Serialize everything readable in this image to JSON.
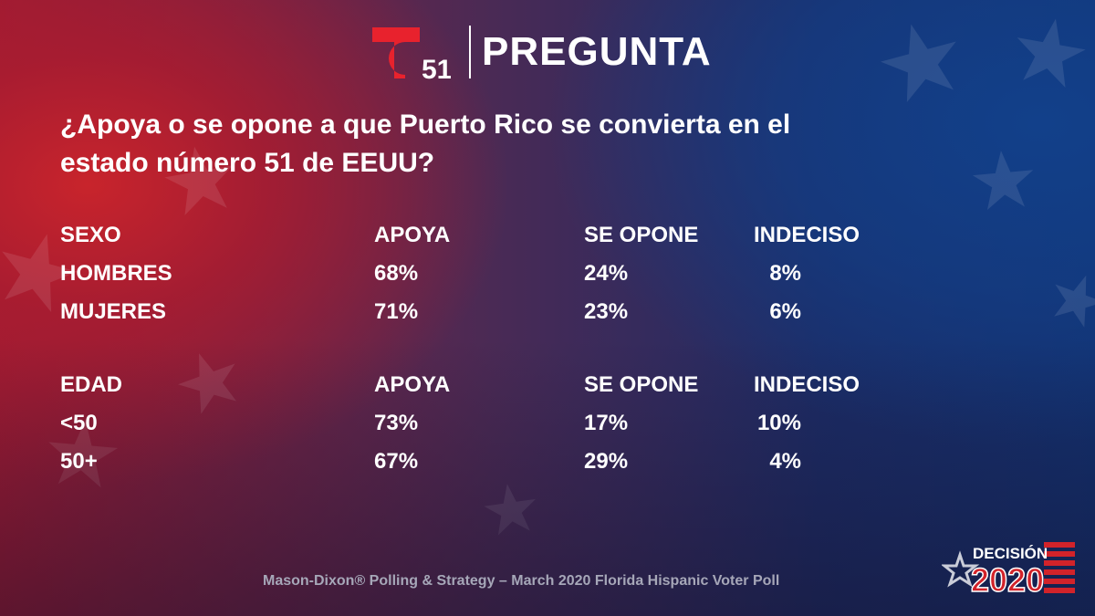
{
  "header": {
    "logo_number": "51",
    "title": "PREGUNTA"
  },
  "question": "¿Apoya o se opone a que Puerto Rico se convierta en el estado número 51 de EEUU?",
  "chart_data": [
    {
      "type": "table",
      "columns": [
        "SEXO",
        "APOYA",
        "SE OPONE",
        "INDECISO"
      ],
      "rows": [
        [
          "HOMBRES",
          "68%",
          "24%",
          "8%"
        ],
        [
          "MUJERES",
          "71%",
          "23%",
          "6%"
        ]
      ]
    },
    {
      "type": "table",
      "columns": [
        "EDAD",
        "APOYA",
        "SE OPONE",
        "INDECISO"
      ],
      "rows": [
        [
          "<50",
          "73%",
          "17%",
          "10%"
        ],
        [
          "50+",
          "67%",
          "29%",
          "4%"
        ]
      ]
    }
  ],
  "footer": {
    "source": "Mason-Dixon® Polling & Strategy – March 2020 Florida Hispanic Voter Poll",
    "badge_top": "DECISIÓN",
    "badge_year": "2020"
  },
  "colors": {
    "logo_red": "#e8222d",
    "badge_red": "#d2232a",
    "source_text": "#a6a7b8"
  }
}
